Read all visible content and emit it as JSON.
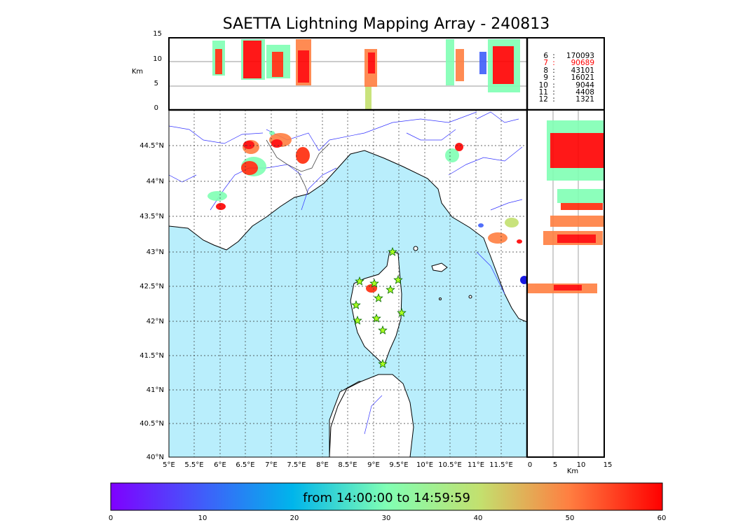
{
  "title": "SAETTA Lightning Mapping Array - 240813",
  "top_panel": {
    "ylabel": "Km",
    "yticks": [
      "15",
      "10",
      "5",
      "0"
    ]
  },
  "side_panel": {
    "xlabel": "Km",
    "xticks": [
      "0",
      "5",
      "10",
      "15"
    ]
  },
  "map": {
    "lat_ticks": [
      "44.5°N",
      "44°N",
      "43.5°N",
      "43°N",
      "42.5°N",
      "42°N",
      "41.5°N",
      "41°N",
      "40.5°N",
      "40°N"
    ],
    "lon_ticks": [
      "5°E",
      "5.5°E",
      "6°E",
      "6.5°E",
      "7°E",
      "7.5°E",
      "8°E",
      "8.5°E",
      "9°E",
      "9.5°E",
      "10°E",
      "10.5°E",
      "11°E",
      "11.5°E"
    ],
    "sea_color": "#b9eefc",
    "station_color": "#aaff22"
  },
  "counts": [
    {
      "k": "6",
      "v": "170093",
      "highlight": false
    },
    {
      "k": "7",
      "v": "90689",
      "highlight": true
    },
    {
      "k": "8",
      "v": "43101",
      "highlight": false
    },
    {
      "k": "9",
      "v": "16021",
      "highlight": false
    },
    {
      "k": "10",
      "v": "9044",
      "highlight": false
    },
    {
      "k": "11",
      "v": "4408",
      "highlight": false
    },
    {
      "k": "12",
      "v": "1321",
      "highlight": false
    }
  ],
  "colorbar": {
    "label": "from 14:00:00 to 14:59:59",
    "ticks": [
      "0",
      "10",
      "20",
      "30",
      "40",
      "50",
      "60"
    ],
    "range": [
      0,
      60
    ]
  }
}
